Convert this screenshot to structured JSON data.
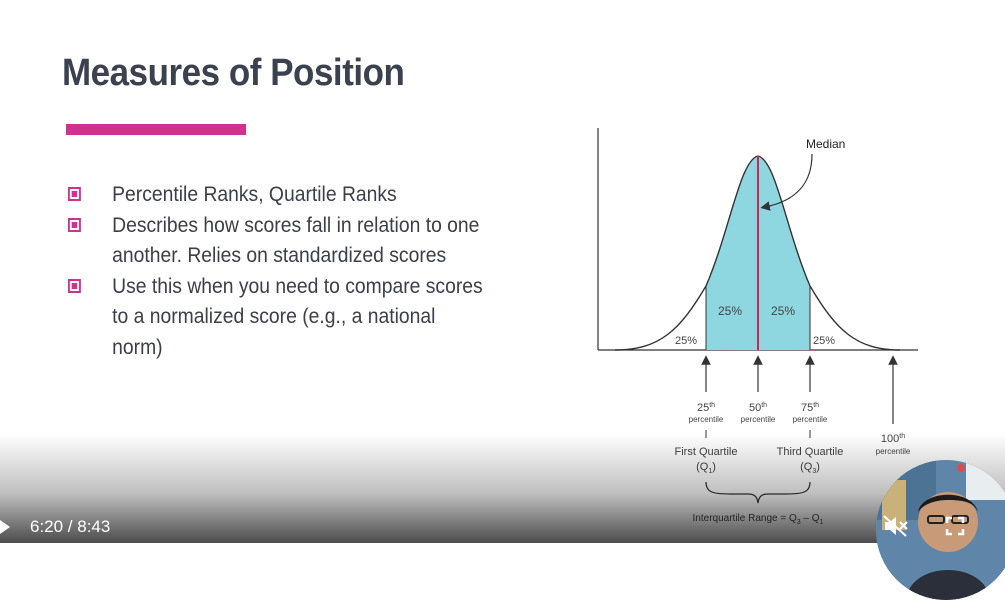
{
  "slide": {
    "title": "Measures of Position",
    "accent_color": "#d2308e",
    "bullets": [
      {
        "text": "Percentile Ranks, Quartile Ranks"
      },
      {
        "text": "Describes how scores fall in relation to one another. Relies on standardized scores"
      },
      {
        "text": "Use this when you need to compare scores to a normalized score (e.g., a national norm)"
      }
    ]
  },
  "diagram": {
    "median_label": "Median",
    "region_labels": [
      "25%",
      "25%",
      "25%",
      "25%"
    ],
    "percentiles": [
      {
        "num": "25",
        "sup": "th",
        "word": "percentile"
      },
      {
        "num": "50",
        "sup": "th",
        "word": "percentile"
      },
      {
        "num": "75",
        "sup": "th",
        "word": "percentile"
      },
      {
        "num": "100",
        "sup": "th",
        "word": "percentile"
      }
    ],
    "first_quartile": "First Quartile",
    "first_quartile_sym": "(Q",
    "first_quartile_sub": "1",
    "third_quartile": "Third Quartile",
    "third_quartile_sym": "(Q",
    "third_quartile_sub": "3",
    "iqr_label": "Interquartile Range = Q",
    "iqr_sub3": "3",
    "iqr_minus": " – Q",
    "iqr_sub1": "1",
    "fill_color": "#8ed6e0",
    "median_color": "#c8285a"
  },
  "player": {
    "time": "6:20 / 8:43",
    "icons": [
      "play-icon",
      "mute-icon",
      "fullscreen-icon"
    ]
  }
}
